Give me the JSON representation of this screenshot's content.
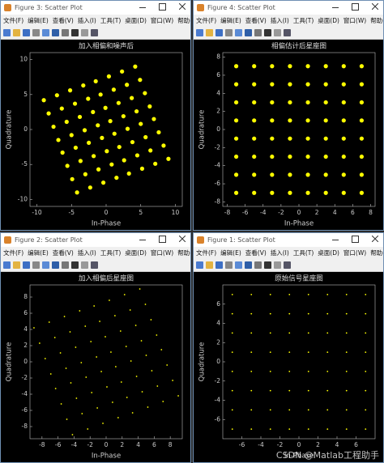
{
  "windows": [
    {
      "title": "Figure 3: Scatter Plot",
      "menu": [
        "文件(F)",
        "编辑(E)",
        "查看(V)",
        "插入(I)",
        "工具(T)",
        "桌面(D)",
        "窗口(W)",
        "帮助(H)"
      ],
      "chart_data": {
        "type": "scatter",
        "title": "加入相偏和噪声后",
        "xlabel": "In-Phase",
        "ylabel": "Quadrature",
        "color": "#ffff00",
        "marker_size": 2.6,
        "xlim": [
          -11,
          11
        ],
        "ylim": [
          -11,
          11
        ],
        "xticks": [
          -10,
          -5,
          0,
          5,
          10
        ],
        "yticks": [
          -10,
          -5,
          0,
          5,
          10
        ],
        "x": [
          -4.2,
          -2.3,
          -0.4,
          1.5,
          3.3,
          5.2,
          7.1,
          9.0,
          -4.9,
          -3.0,
          -1.1,
          0.8,
          2.6,
          4.5,
          6.4,
          8.3,
          -5.6,
          -3.7,
          -1.8,
          0.1,
          1.9,
          3.8,
          5.7,
          7.6,
          -6.3,
          -4.4,
          -2.5,
          -0.6,
          1.2,
          3.1,
          5.0,
          6.9,
          -6.9,
          -5.0,
          -3.1,
          -1.2,
          0.6,
          2.5,
          4.4,
          6.3,
          -7.6,
          -5.7,
          -3.8,
          -1.9,
          -0.1,
          1.8,
          3.7,
          5.6,
          -8.3,
          -6.4,
          -4.5,
          -2.6,
          -0.8,
          1.1,
          3.0,
          4.9,
          -9.0,
          -7.1,
          -5.2,
          -3.3,
          -1.5,
          0.4,
          2.3,
          4.2
        ],
        "y": [
          -9.0,
          -8.3,
          -7.6,
          -6.9,
          -6.3,
          -5.6,
          -4.9,
          -4.2,
          -7.1,
          -6.4,
          -5.7,
          -5.0,
          -4.4,
          -3.7,
          -3.0,
          -2.3,
          -5.2,
          -4.5,
          -3.8,
          -3.1,
          -2.5,
          -1.8,
          -1.1,
          -0.4,
          -3.3,
          -2.6,
          -1.9,
          -1.2,
          -0.6,
          0.1,
          0.8,
          1.5,
          -1.5,
          -0.8,
          -0.1,
          0.6,
          1.2,
          1.9,
          2.6,
          3.3,
          0.4,
          1.1,
          1.8,
          2.5,
          3.1,
          3.8,
          4.5,
          5.2,
          2.3,
          3.0,
          3.7,
          4.4,
          5.0,
          5.7,
          6.4,
          7.1,
          4.2,
          4.9,
          5.6,
          6.3,
          6.9,
          7.6,
          8.3,
          9.0
        ]
      }
    },
    {
      "title": "Figure 4: Scatter Plot",
      "menu": [
        "文件(F)",
        "编辑(E)",
        "查看(V)",
        "插入(I)",
        "工具(T)",
        "桌面(D)",
        "窗口(W)",
        "帮助(H)"
      ],
      "chart_data": {
        "type": "scatter",
        "title": "相偏估计后星座图",
        "xlabel": "In-Phase",
        "ylabel": "Quadrature",
        "color": "#ffff00",
        "marker_size": 2.6,
        "xlim": [
          -8.5,
          8.5
        ],
        "ylim": [
          -8.5,
          8.5
        ],
        "xticks": [
          -8,
          -6,
          -4,
          -2,
          0,
          2,
          4,
          6,
          8
        ],
        "yticks": [
          -8,
          -6,
          -4,
          -2,
          0,
          2,
          4,
          6,
          8
        ],
        "x": [
          -7,
          -5,
          -3,
          -1,
          1,
          3,
          5,
          7,
          -7,
          -5,
          -3,
          -1,
          1,
          3,
          5,
          7,
          -7,
          -5,
          -3,
          -1,
          1,
          3,
          5,
          7,
          -7,
          -5,
          -3,
          -1,
          1,
          3,
          5,
          7,
          -7,
          -5,
          -3,
          -1,
          1,
          3,
          5,
          7,
          -7,
          -5,
          -3,
          -1,
          1,
          3,
          5,
          7,
          -7,
          -5,
          -3,
          -1,
          1,
          3,
          5,
          7,
          -7,
          -5,
          -3,
          -1,
          1,
          3,
          5,
          7
        ],
        "y": [
          -7,
          -7,
          -7,
          -7,
          -7,
          -7,
          -7,
          -7,
          -5,
          -5,
          -5,
          -5,
          -5,
          -5,
          -5,
          -5,
          -3,
          -3,
          -3,
          -3,
          -3,
          -3,
          -3,
          -3,
          -1,
          -1,
          -1,
          -1,
          -1,
          -1,
          -1,
          -1,
          1,
          1,
          1,
          1,
          1,
          1,
          1,
          1,
          3,
          3,
          3,
          3,
          3,
          3,
          3,
          3,
          5,
          5,
          5,
          5,
          5,
          5,
          5,
          5,
          7,
          7,
          7,
          7,
          7,
          7,
          7,
          7
        ]
      }
    },
    {
      "title": "Figure 2: Scatter Plot",
      "menu": [
        "文件(F)",
        "编辑(E)",
        "查看(V)",
        "插入(I)",
        "工具(T)",
        "桌面(D)",
        "窗口(W)",
        "帮助(H)"
      ],
      "chart_data": {
        "type": "scatter",
        "title": "加入相偏后星座图",
        "xlabel": "In-Phase",
        "ylabel": "Quadrature",
        "color": "#ffff00",
        "marker_size": 0.9,
        "xlim": [
          -9.5,
          9.5
        ],
        "ylim": [
          -9.5,
          9.5
        ],
        "xticks": [
          -8,
          -6,
          -4,
          -2,
          0,
          2,
          4,
          6,
          8
        ],
        "yticks": [
          -8,
          -6,
          -4,
          -2,
          0,
          2,
          4,
          6,
          8
        ],
        "x": [
          -4.2,
          -2.3,
          -0.4,
          1.5,
          3.3,
          5.2,
          7.1,
          9.0,
          -4.9,
          -3.0,
          -1.1,
          0.8,
          2.6,
          4.5,
          6.4,
          8.3,
          -5.6,
          -3.7,
          -1.8,
          0.1,
          1.9,
          3.8,
          5.7,
          7.6,
          -6.3,
          -4.4,
          -2.5,
          -0.6,
          1.2,
          3.1,
          5.0,
          6.9,
          -6.9,
          -5.0,
          -3.1,
          -1.2,
          0.6,
          2.5,
          4.4,
          6.3,
          -7.6,
          -5.7,
          -3.8,
          -1.9,
          -0.1,
          1.8,
          3.7,
          5.6,
          -8.3,
          -6.4,
          -4.5,
          -2.6,
          -0.8,
          1.1,
          3.0,
          4.9,
          -9.0,
          -7.1,
          -5.2,
          -3.3,
          -1.5,
          0.4,
          2.3,
          4.2
        ],
        "y": [
          -9.0,
          -8.3,
          -7.6,
          -6.9,
          -6.3,
          -5.6,
          -4.9,
          -4.2,
          -7.1,
          -6.4,
          -5.7,
          -5.0,
          -4.4,
          -3.7,
          -3.0,
          -2.3,
          -5.2,
          -4.5,
          -3.8,
          -3.1,
          -2.5,
          -1.8,
          -1.1,
          -0.4,
          -3.3,
          -2.6,
          -1.9,
          -1.2,
          -0.6,
          0.1,
          0.8,
          1.5,
          -1.5,
          -0.8,
          -0.1,
          0.6,
          1.2,
          1.9,
          2.6,
          3.3,
          0.4,
          1.1,
          1.8,
          2.5,
          3.1,
          3.8,
          4.5,
          5.2,
          2.3,
          3.0,
          3.7,
          4.4,
          5.0,
          5.7,
          6.4,
          7.1,
          4.2,
          4.9,
          5.6,
          6.3,
          6.9,
          7.6,
          8.3,
          9.0
        ]
      }
    },
    {
      "title": "Figure 1: Scatter Plot",
      "menu": [
        "文件(F)",
        "编辑(E)",
        "查看(V)",
        "插入(I)",
        "工具(T)",
        "桌面(D)",
        "窗口(W)",
        "帮助(H)"
      ],
      "chart_data": {
        "type": "scatter",
        "title": "原始信号星座图",
        "xlabel": "In-Phase",
        "ylabel": "Quadrature",
        "color": "#ffff00",
        "marker_size": 0.9,
        "xlim": [
          -8,
          8
        ],
        "ylim": [
          -8,
          8
        ],
        "xticks": [
          -6,
          -4,
          -2,
          0,
          2,
          4,
          6
        ],
        "yticks": [
          -6,
          -4,
          -2,
          0,
          2,
          4,
          6
        ],
        "x": [
          -7,
          -5,
          -3,
          -1,
          1,
          3,
          5,
          7,
          -7,
          -5,
          -3,
          -1,
          1,
          3,
          5,
          7,
          -7,
          -5,
          -3,
          -1,
          1,
          3,
          5,
          7,
          -7,
          -5,
          -3,
          -1,
          1,
          3,
          5,
          7,
          -7,
          -5,
          -3,
          -1,
          1,
          3,
          5,
          7,
          -7,
          -5,
          -3,
          -1,
          1,
          3,
          5,
          7,
          -7,
          -5,
          -3,
          -1,
          1,
          3,
          5,
          7,
          -7,
          -5,
          -3,
          -1,
          1,
          3,
          5,
          7
        ],
        "y": [
          -7,
          -7,
          -7,
          -7,
          -7,
          -7,
          -7,
          -7,
          -5,
          -5,
          -5,
          -5,
          -5,
          -5,
          -5,
          -5,
          -3,
          -3,
          -3,
          -3,
          -3,
          -3,
          -3,
          -3,
          -1,
          -1,
          -1,
          -1,
          -1,
          -1,
          -1,
          -1,
          1,
          1,
          1,
          1,
          1,
          1,
          1,
          1,
          3,
          3,
          3,
          3,
          3,
          3,
          3,
          3,
          5,
          5,
          5,
          5,
          5,
          5,
          5,
          5,
          7,
          7,
          7,
          7,
          7,
          7,
          7,
          7
        ]
      }
    }
  ],
  "watermark": "CSDN @Matlab工程助手"
}
